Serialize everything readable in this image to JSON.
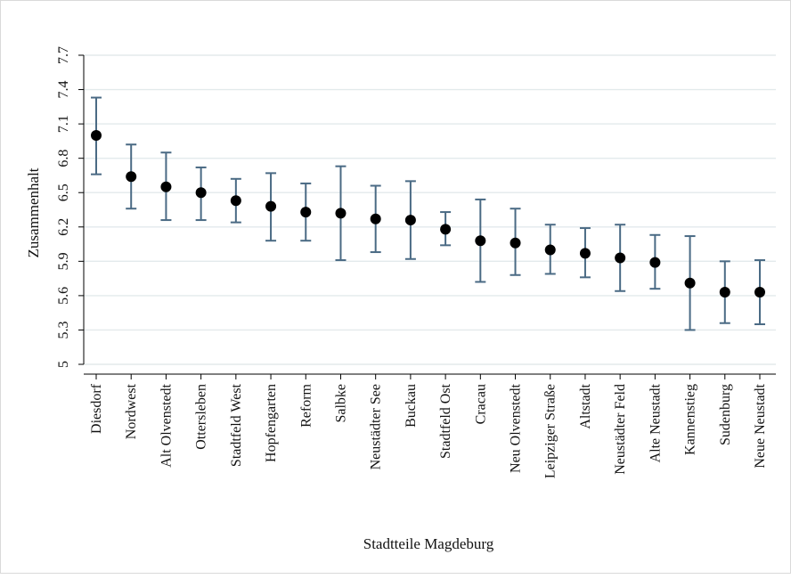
{
  "chart_data": {
    "type": "scatter",
    "title": "",
    "xlabel": "Stadtteile Magdeburg",
    "ylabel": "Zusammenhalt",
    "ylim": [
      5,
      7.7
    ],
    "yticks": [
      "5",
      "5.3",
      "5.6",
      "5.9",
      "6.2",
      "6.5",
      "6.8",
      "7.1",
      "7.4",
      "7.7"
    ],
    "grid": true,
    "legend": "none",
    "error_bars": true,
    "categories": [
      "Diesdorf",
      "Nordwest",
      "Alt Olvenstedt",
      "Ottersleben",
      "Stadtfeld West",
      "Hopfengarten",
      "Reform",
      "Salbke",
      "Neustädter See",
      "Buckau",
      "Stadtfeld Ost",
      "Cracau",
      "Neu Olvenstedt",
      "Leipziger Straße",
      "Altstadt",
      "Neustädter Feld",
      "Alte Neustadt",
      "Kannenstieg",
      "Sudenburg",
      "Neue Neustadt"
    ],
    "values": [
      7.0,
      6.64,
      6.55,
      6.5,
      6.43,
      6.38,
      6.33,
      6.32,
      6.27,
      6.26,
      6.18,
      6.08,
      6.06,
      6.0,
      5.97,
      5.93,
      5.89,
      5.71,
      5.63,
      5.63
    ],
    "lower": [
      6.66,
      6.36,
      6.26,
      6.26,
      6.24,
      6.08,
      6.08,
      5.91,
      5.98,
      5.92,
      6.04,
      5.72,
      5.78,
      5.79,
      5.76,
      5.64,
      5.66,
      5.3,
      5.36,
      5.35
    ],
    "upper": [
      7.33,
      6.92,
      6.85,
      6.72,
      6.62,
      6.67,
      6.58,
      6.73,
      6.56,
      6.6,
      6.33,
      6.44,
      6.36,
      6.22,
      6.19,
      6.22,
      6.13,
      6.12,
      5.9,
      5.91
    ],
    "colors": {
      "marker": "#000000",
      "errorbar": "#4a6a84",
      "grid": "#e3eaec",
      "axis": "#000000",
      "background": "#ffffff"
    }
  }
}
